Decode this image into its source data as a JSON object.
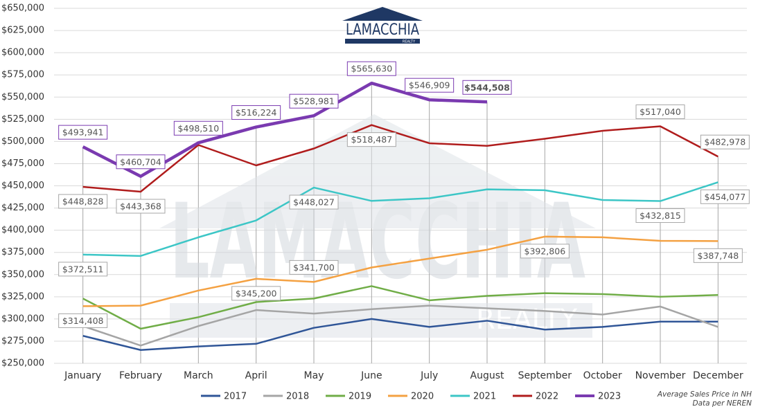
{
  "chart_data": {
    "type": "line",
    "logo": {
      "name": "LAMACCHIA",
      "tagline": "REALTY"
    },
    "notes": [
      "Average Sales Price in NH",
      "Data per NEREN"
    ],
    "categories": [
      "January",
      "February",
      "March",
      "April",
      "May",
      "June",
      "July",
      "August",
      "September",
      "October",
      "November",
      "December"
    ],
    "ylim": [
      250000,
      650000
    ],
    "yticks": [
      {
        "value": 250000,
        "label": "$250,000"
      },
      {
        "value": 275000,
        "label": "$275,000"
      },
      {
        "value": 300000,
        "label": "$300,000"
      },
      {
        "value": 325000,
        "label": "$325,000"
      },
      {
        "value": 350000,
        "label": "$350,000"
      },
      {
        "value": 375000,
        "label": "$375,000"
      },
      {
        "value": 400000,
        "label": "$400,000"
      },
      {
        "value": 425000,
        "label": "$425,000"
      },
      {
        "value": 450000,
        "label": "$450,000"
      },
      {
        "value": 475000,
        "label": "$475,000"
      },
      {
        "value": 500000,
        "label": "$500,000"
      },
      {
        "value": 525000,
        "label": "$525,000"
      },
      {
        "value": 550000,
        "label": "$550,000"
      },
      {
        "value": 575000,
        "label": "$575,000"
      },
      {
        "value": 600000,
        "label": "$600,000"
      },
      {
        "value": 625000,
        "label": "$625,000"
      },
      {
        "value": 650000,
        "label": "$650,000"
      }
    ],
    "grid": true,
    "legend": "bottom",
    "series": [
      {
        "name": "2017",
        "color": "#2f5597",
        "values": [
          281000,
          265000,
          269000,
          272000,
          290000,
          300000,
          291000,
          298000,
          288000,
          291000,
          297000,
          297000
        ]
      },
      {
        "name": "2018",
        "color": "#a5a5a5",
        "values": [
          292000,
          270000,
          292000,
          310000,
          306000,
          311000,
          315000,
          312000,
          309000,
          305000,
          314000,
          291000
        ]
      },
      {
        "name": "2019",
        "color": "#70ad47",
        "values": [
          323000,
          289000,
          302000,
          319000,
          323000,
          337000,
          321000,
          326000,
          329000,
          328000,
          325000,
          327000
        ]
      },
      {
        "name": "2020",
        "color": "#f4a142",
        "values": [
          314408,
          315000,
          332000,
          345200,
          341700,
          358000,
          368000,
          378000,
          392806,
          392000,
          388000,
          387748
        ],
        "value_labels": [
          "$314,408",
          null,
          null,
          "$345,200",
          "$341,700",
          null,
          null,
          null,
          "$392,806",
          null,
          null,
          "$387,748"
        ]
      },
      {
        "name": "2021",
        "color": "#3cc6c6",
        "values": [
          372511,
          371000,
          392000,
          411000,
          448027,
          433000,
          436000,
          446000,
          445000,
          434000,
          432815,
          454077
        ],
        "value_labels": [
          "$372,511",
          null,
          null,
          null,
          "$448,027",
          null,
          null,
          null,
          null,
          null,
          "$432,815",
          "$454,077"
        ]
      },
      {
        "name": "2022",
        "color": "#b01c1c",
        "values": [
          448828,
          443368,
          496000,
          473000,
          492000,
          518487,
          498000,
          495000,
          503000,
          512000,
          517040,
          482978
        ],
        "value_labels": [
          "$448,828",
          "$443,368",
          null,
          null,
          null,
          "$518,487",
          null,
          null,
          null,
          null,
          "$517,040",
          "$482,978"
        ]
      },
      {
        "name": "2023",
        "color": "#7a3ab0",
        "values": [
          493941,
          460704,
          498510,
          516224,
          528981,
          565630,
          546909,
          544508,
          null,
          null,
          null,
          null
        ],
        "value_labels": [
          "$493,941",
          "$460,704",
          "$498,510",
          "$516,224",
          "$528,981",
          "$565,630",
          "$546,909",
          "$544,508",
          null,
          null,
          null,
          null
        ]
      }
    ]
  }
}
